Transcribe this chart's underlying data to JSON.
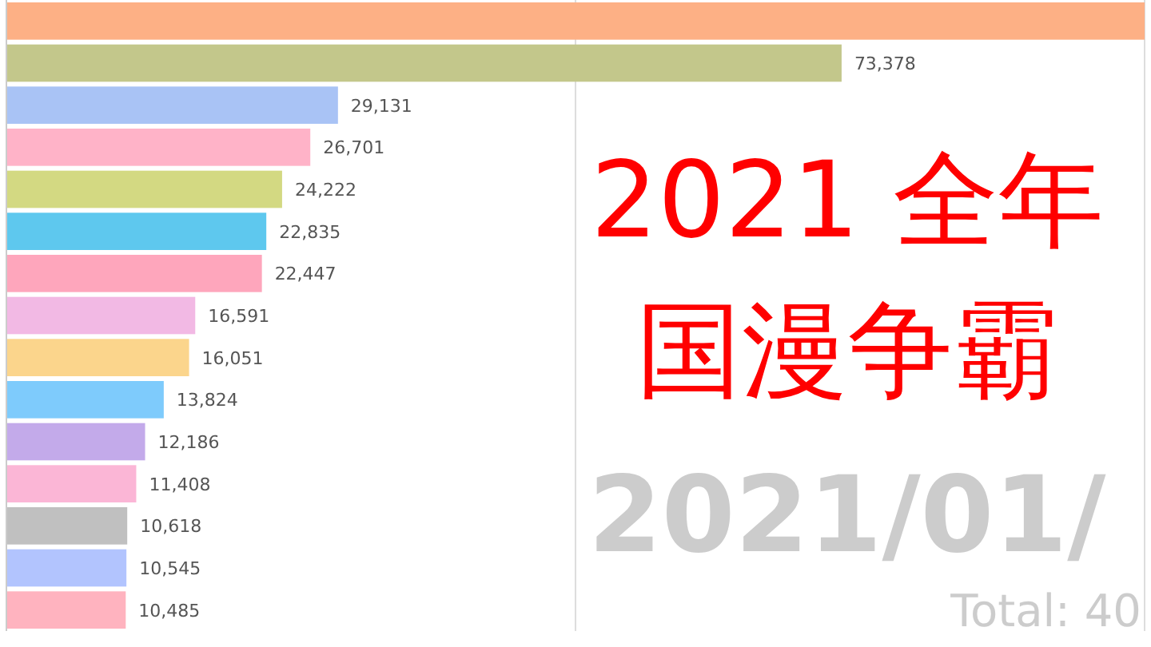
{
  "chart_data": {
    "type": "bar",
    "orientation": "horizontal",
    "title": "2021 全年",
    "subtitle": "国漫争霸",
    "categories": [
      null,
      null,
      null,
      null,
      null,
      null,
      null,
      null,
      null,
      null,
      null,
      null,
      null,
      null,
      null
    ],
    "values": [
      100000,
      73378,
      29131,
      26701,
      24222,
      22835,
      22447,
      16591,
      16051,
      13824,
      12186,
      11408,
      10618,
      10545,
      10485
    ],
    "value_labels": [
      null,
      "73,378",
      "29,131",
      "26,701",
      "24,222",
      "22,835",
      "22,447",
      "16,591",
      "16,051",
      "13,824",
      "12,186",
      "11,408",
      "10,618",
      "10,545",
      "10,485"
    ],
    "colors": [
      "#fdb085",
      "#c3c78b",
      "#a9c3f5",
      "#ffb3c8",
      "#d3d982",
      "#5ec8ee",
      "#fea6bc",
      "#f2b9e4",
      "#fbd58c",
      "#7ecbfc",
      "#c3aaea",
      "#fbb6d6",
      "#c0c0c0",
      "#b2c4fe",
      "#ffb3bf"
    ],
    "xlim": [
      0,
      100000
    ],
    "xticks": [
      {
        "value": 0,
        "label": null
      },
      {
        "value": 50000,
        "label": null
      },
      {
        "value": 100000,
        "label": null
      }
    ],
    "grid": "x",
    "annotations": [
      "2021/01/",
      "Total: 40"
    ]
  }
}
